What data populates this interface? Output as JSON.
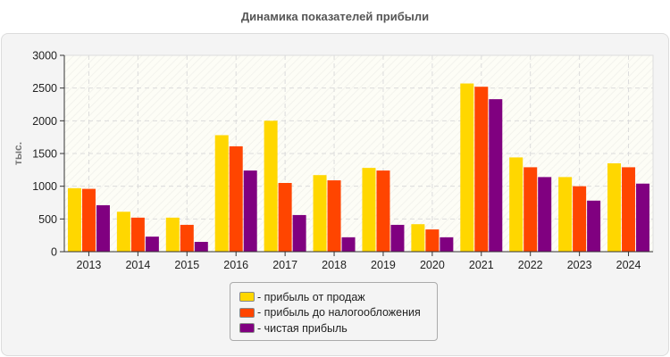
{
  "chart_data": {
    "type": "bar",
    "title": "Динамика показателей прибыли",
    "xlabel": "",
    "ylabel": "тыс.",
    "ylim": [
      0,
      3000
    ],
    "yticks": [
      0,
      500,
      1000,
      1500,
      2000,
      2500,
      3000
    ],
    "grid": true,
    "legend_position": "bottom",
    "categories": [
      "2013",
      "2014",
      "2015",
      "2016",
      "2017",
      "2018",
      "2019",
      "2020",
      "2021",
      "2022",
      "2023",
      "2024"
    ],
    "series": [
      {
        "name": "- прибыль от продаж",
        "color": "#ffd700",
        "values": [
          970,
          610,
          520,
          1780,
          2000,
          1170,
          1280,
          420,
          2570,
          1440,
          1140,
          1350
        ]
      },
      {
        "name": "- прибыль до налогообложения",
        "color": "#ff4500",
        "values": [
          960,
          520,
          410,
          1610,
          1050,
          1090,
          1240,
          340,
          2520,
          1290,
          1000,
          1290
        ]
      },
      {
        "name": "- чистая прибыль",
        "color": "#800080",
        "values": [
          710,
          230,
          150,
          1240,
          560,
          220,
          410,
          220,
          2330,
          1140,
          780,
          1040
        ]
      }
    ]
  }
}
